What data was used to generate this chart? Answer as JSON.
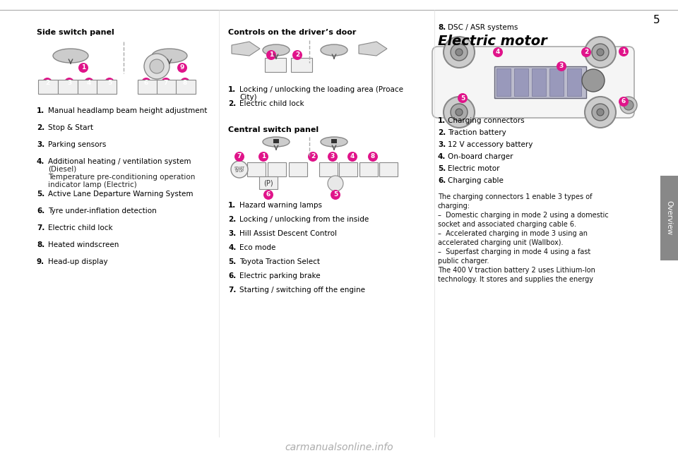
{
  "page_num": "5",
  "bg_color": "#ffffff",
  "top_rule_color": "#cccccc",
  "page_num_color": "#000000",
  "section_tab_color": "#999999",
  "section_tab_text": "Overview",
  "col1_header": "Side switch panel",
  "col1_items": [
    "Manual headlamp beam height adjustment",
    "Stop & Start",
    "Parking sensors",
    "Additional heating / ventilation system\n(Diesel)\nTemperature pre-conditioning operation\nindicator lamp (Electric)",
    "Active Lane Departure Warning System",
    "Tyre under-inflation detection",
    "Electric child lock",
    "Heated windscreen",
    "Head-up display"
  ],
  "col2_header1": "Controls on the driver’s door",
  "col2_items1": [
    "Locking / unlocking the loading area (Proace\nCity)",
    "Electric child lock"
  ],
  "col2_header2": "Central switch panel",
  "col2_items2": [
    "Hazard warning lamps",
    "Locking / unlocking from the inside",
    "Hill Assist Descent Control",
    "Eco mode",
    "Toyota Traction Select",
    "Electric parking brake",
    "Starting / switching off the engine"
  ],
  "col3_item8": "DSC / ASR systems",
  "col3_header": "Electric motor",
  "col3_items": [
    "Charging connectors",
    "Traction battery",
    "12 V accessory battery",
    "On-board charger",
    "Electric motor",
    "Charging cable"
  ],
  "col3_paragraph": "The charging connectors 1 enable 3 types of\ncharging:\n–  Domestic charging in mode 2 using a domestic\nsocket and associated charging cable 6.\n–  Accelerated charging in mode 3 using an\naccelerated charging unit (Wallbox).\n–  Superfast charging in mode 4 using a fast\npublic charger.\nThe 400 V traction battery 2 uses Lithium-Ion\ntechnology. It stores and supplies the energy",
  "magenta": "#e0148a",
  "header_font_bold": true
}
